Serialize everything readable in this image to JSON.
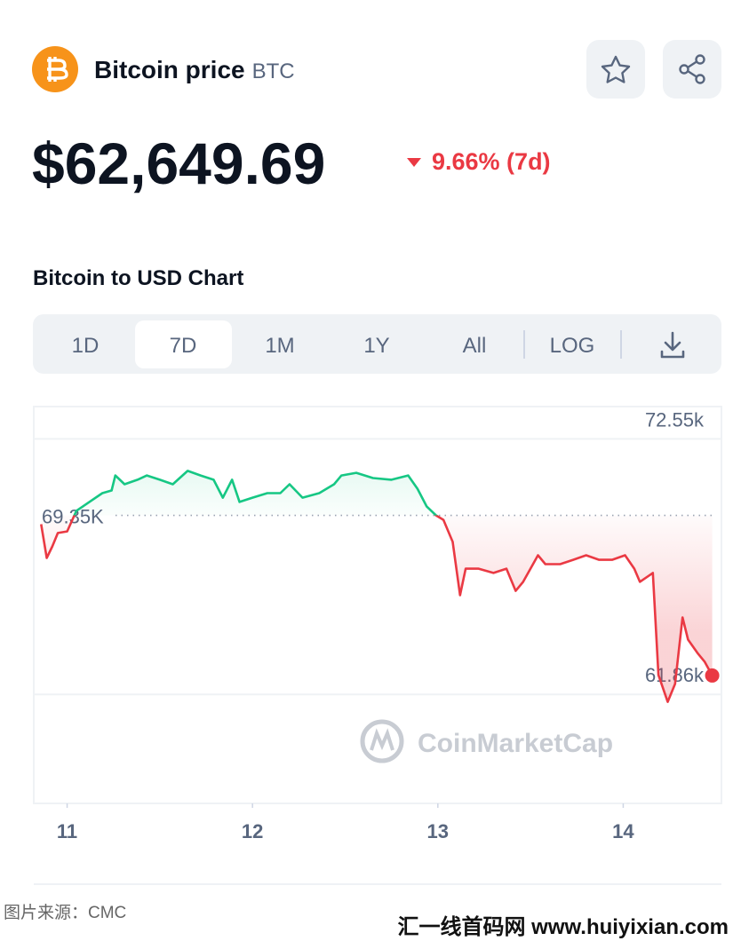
{
  "header": {
    "title": "Bitcoin price",
    "symbol": "BTC",
    "price": "$62,649.69",
    "change": "9.66% (7d)"
  },
  "chart_heading": "Bitcoin to USD Chart",
  "tabs": [
    "1D",
    "7D",
    "1M",
    "1Y",
    "All",
    "LOG"
  ],
  "selected_tab": 1,
  "watermark": "CoinMarketCap",
  "footer": {
    "source": "图片来源：CMC",
    "site": "汇一线首码网 www.huiyixian.com"
  },
  "chart_data": {
    "type": "line",
    "x": [
      10.86,
      10.89,
      10.92,
      10.95,
      11.0,
      11.05,
      11.12,
      11.19,
      11.24,
      11.26,
      11.31,
      11.38,
      11.43,
      11.5,
      11.57,
      11.65,
      11.72,
      11.79,
      11.84,
      11.89,
      11.93,
      12.0,
      12.08,
      12.15,
      12.2,
      12.27,
      12.36,
      12.44,
      12.48,
      12.56,
      12.65,
      12.75,
      12.84,
      12.89,
      12.94,
      12.99,
      13.03,
      13.08,
      13.12,
      13.15,
      13.22,
      13.3,
      13.37,
      13.42,
      13.46,
      13.54,
      13.58,
      13.66,
      13.73,
      13.8,
      13.87,
      13.94,
      14.01,
      14.06,
      14.09,
      14.16,
      14.19,
      14.24,
      14.28,
      14.32,
      14.35,
      14.4,
      14.44,
      14.48
    ],
    "series": [
      {
        "values": [
          68980,
          67570,
          68050,
          68610,
          68680,
          69540,
          69910,
          70280,
          70390,
          71020,
          70650,
          70840,
          71020,
          70840,
          70650,
          71210,
          71020,
          70840,
          70090,
          70840,
          69910,
          70090,
          70280,
          70280,
          70650,
          70090,
          70280,
          70650,
          71020,
          71130,
          70910,
          70840,
          71020,
          70460,
          69720,
          69350,
          69160,
          68240,
          66010,
          67120,
          67120,
          66940,
          67120,
          66190,
          66570,
          67680,
          67310,
          67310,
          67490,
          67680,
          67490,
          67490,
          67680,
          67120,
          66570,
          66940,
          62670,
          61550,
          62300,
          65080,
          64150,
          63600,
          63220,
          62650
        ]
      }
    ],
    "colors": {
      "up": "#16c784",
      "down": "#ea3943"
    },
    "xlim": [
      10.82,
      14.53
    ],
    "xticks": [
      11,
      12,
      13,
      14
    ],
    "ylim": [
      57300,
      73900
    ],
    "yticks": [
      {
        "value": 72550,
        "label": "72.55k"
      },
      {
        "value": 61860,
        "label": "61.86k"
      }
    ],
    "reference": {
      "value": 69350,
      "label": "69.35K"
    },
    "grid": true
  }
}
